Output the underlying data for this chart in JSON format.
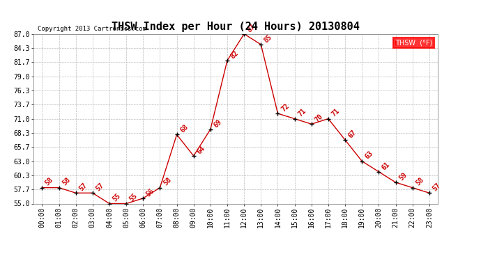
{
  "title": "THSW Index per Hour (24 Hours) 20130804",
  "copyright": "Copyright 2013 Cartronics.com",
  "legend_label": "THSW  (°F)",
  "hours": [
    0,
    1,
    2,
    3,
    4,
    5,
    6,
    7,
    8,
    9,
    10,
    11,
    12,
    13,
    14,
    15,
    16,
    17,
    18,
    19,
    20,
    21,
    22,
    23
  ],
  "hour_labels": [
    "00:00",
    "01:00",
    "02:00",
    "03:00",
    "04:00",
    "05:00",
    "06:00",
    "07:00",
    "08:00",
    "09:00",
    "10:00",
    "11:00",
    "12:00",
    "13:00",
    "14:00",
    "15:00",
    "16:00",
    "17:00",
    "18:00",
    "19:00",
    "20:00",
    "21:00",
    "22:00",
    "23:00"
  ],
  "values": [
    58,
    58,
    57,
    57,
    55,
    55,
    56,
    58,
    68,
    64,
    69,
    82,
    87,
    85,
    72,
    71,
    70,
    71,
    67,
    63,
    61,
    59,
    58,
    57
  ],
  "ylim": [
    55.0,
    87.0
  ],
  "yticks": [
    55.0,
    57.7,
    60.3,
    63.0,
    65.7,
    68.3,
    71.0,
    73.7,
    76.3,
    79.0,
    81.7,
    84.3,
    87.0
  ],
  "line_color": "#cc0000",
  "marker_color": "#000000",
  "label_color": "#cc0000",
  "bg_color": "#ffffff",
  "grid_color": "#bbbbbb",
  "title_fontsize": 11,
  "tick_fontsize": 7,
  "label_fontsize": 7,
  "copyright_fontsize": 6.5
}
